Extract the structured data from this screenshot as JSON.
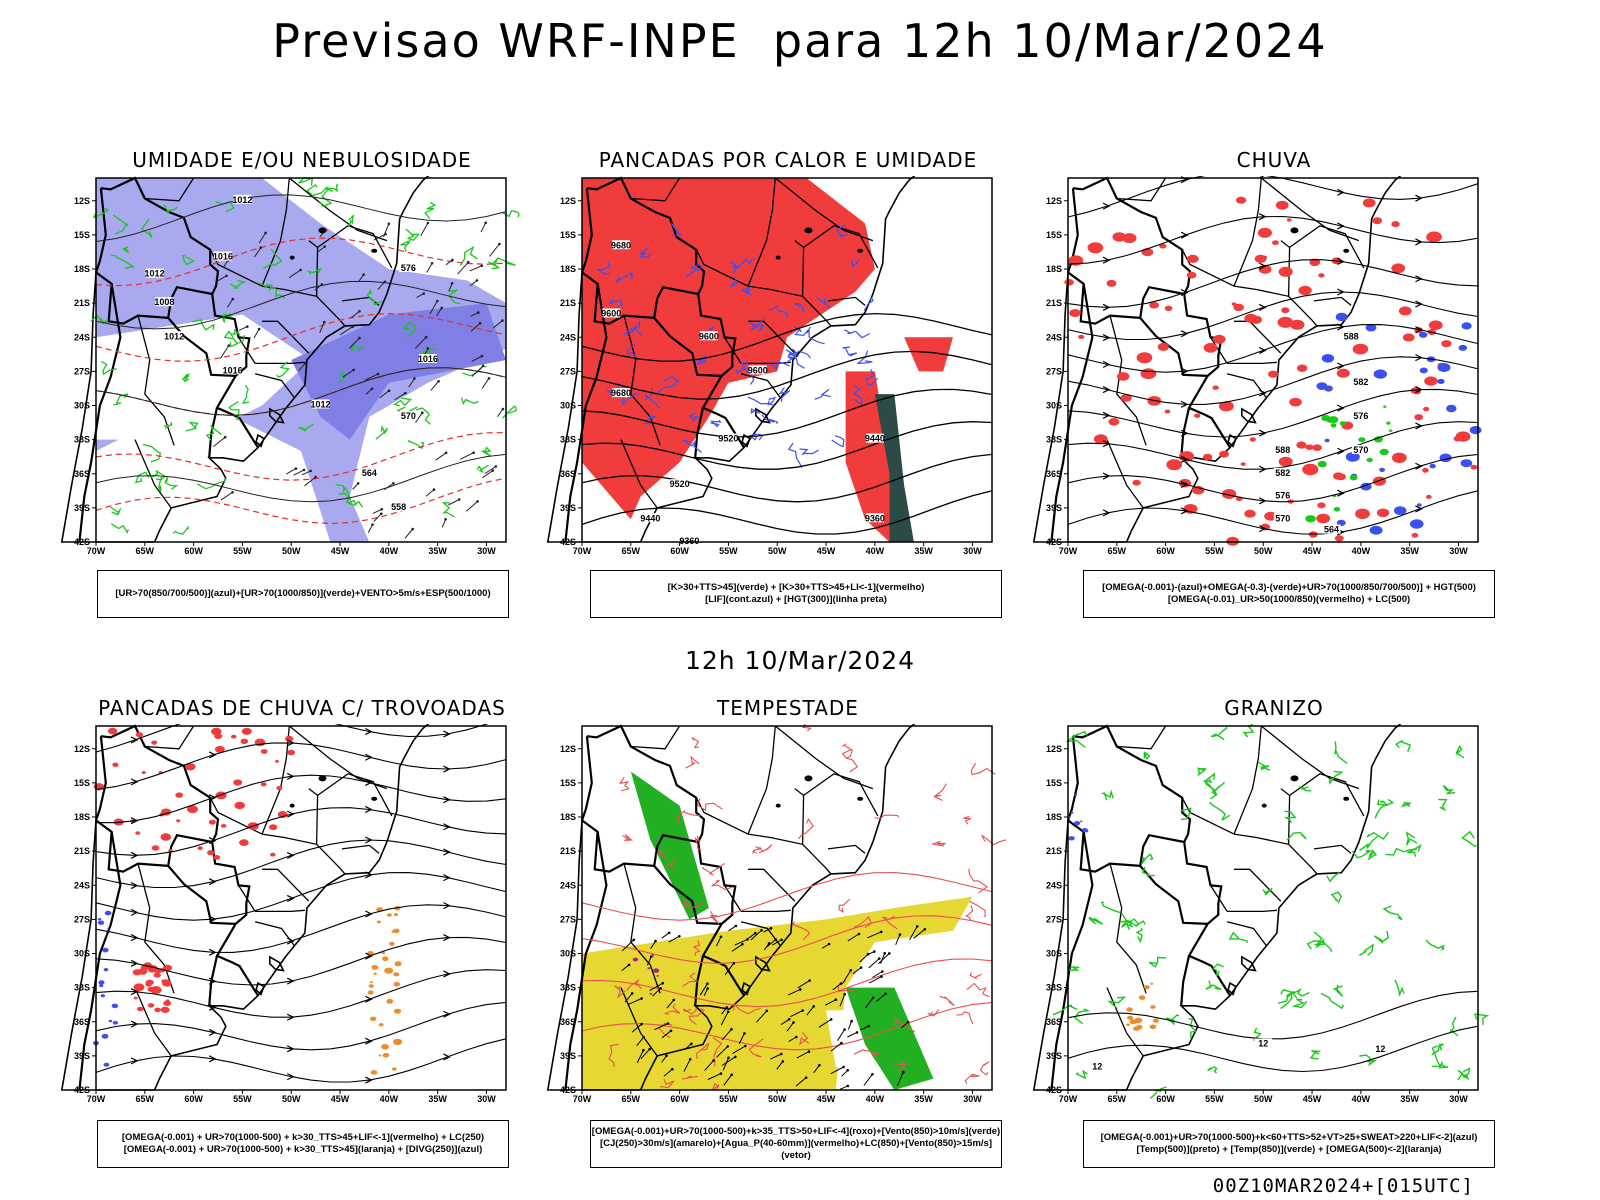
{
  "title": "Previsao WRF-INPE  para 12h 10/Mar/2024",
  "mid_date": "12h 10/Mar/2024",
  "footer": "00Z10MAR2024+[015UTC]",
  "axes": {
    "lat_labels": [
      "12S",
      "15S",
      "18S",
      "21S",
      "24S",
      "27S",
      "30S",
      "33S",
      "36S",
      "39S",
      "42S"
    ],
    "lon_labels": [
      "70W",
      "65W",
      "60W",
      "55W",
      "50W",
      "45W",
      "40W",
      "35W",
      "30W"
    ]
  },
  "colors": {
    "blue_fill": "#a9a9f0",
    "red_fill": "#f03c3c",
    "green_line": "#19c819",
    "blue_line": "#3c50f0",
    "yellow_fill": "#e6d732",
    "orange": "#f08c28",
    "dark_teal": "#2d4b46",
    "purple": "#a020a0"
  },
  "panels": [
    {
      "title": "UMIDADE E/OU NEBULOSIDADE",
      "legend": [
        "[UR>70(850/700/500)](azul)+[UR>70(1000/850)](verde)+VENTO>5m/s+ESP(500/1000)"
      ],
      "contour_labels": [
        "1012",
        "1016",
        "1012",
        "1008",
        "1012",
        "1016",
        "1012",
        "1016",
        "576",
        "570",
        "564",
        "558"
      ]
    },
    {
      "title": "PANCADAS POR CALOR E UMIDADE",
      "legend": [
        "[K>30+TTS>45](verde) + [K>30+TTS>45+LI<-1](vermelho)",
        "[LIF](cont.azul) + [HGT(300)](linha preta)"
      ],
      "contour_labels": [
        "9680",
        "9600",
        "9680",
        "9600",
        "9600",
        "9520",
        "9440",
        "9360",
        "9520",
        "9440",
        "9360"
      ]
    },
    {
      "title": "CHUVA",
      "legend": [
        "[OMEGA(-0.001)-(azul)+OMEGA(-0.3)-(verde)+UR>70(1000/850/700/500)] + HGT(500)",
        "[OMEGA(-0.01)_UR>50(1000/850)(vermelho) + LC(500)"
      ],
      "contour_labels": [
        "588",
        "582",
        "576",
        "570",
        "588",
        "582",
        "576",
        "570",
        "564"
      ]
    },
    {
      "title": "PANCADAS DE CHUVA C/ TROVOADAS",
      "legend": [
        "[OMEGA(-0.001) + UR>70(1000-500) + k>30_TTS>45+LIF<-1](vermelho) + LC(250)",
        "[OMEGA(-0.001) + UR>70(1000-500) + k>30_TTS>45](laranja) + [DIVG(250)](azul)"
      ],
      "contour_labels": []
    },
    {
      "title": "TEMPESTADE",
      "legend": [
        "[OMEGA(-0.001)+UR>70(1000-500)+k>35_TTS>50+LIF<-4](roxo)+[Vento(850)>10m/s](verde)",
        "[CJ(250)>30m/s](amarelo)+[Agua_P(40-60mm)](vermelho)+LC(850)+[Vento(850)>15m/s](vetor)"
      ],
      "contour_labels": []
    },
    {
      "title": "GRANIZO",
      "legend": [
        "[OMEGA(-0.001)+UR>70(1000-500)+k<60+TTS>52+VT>25+SWEAT>220+LIF<-2](azul)",
        "[Temp(500)](preto) + [Temp(850)](verde) + [OMEGA(500)<-2](laranja)"
      ],
      "contour_labels": [
        "12",
        "12",
        "12"
      ]
    }
  ]
}
